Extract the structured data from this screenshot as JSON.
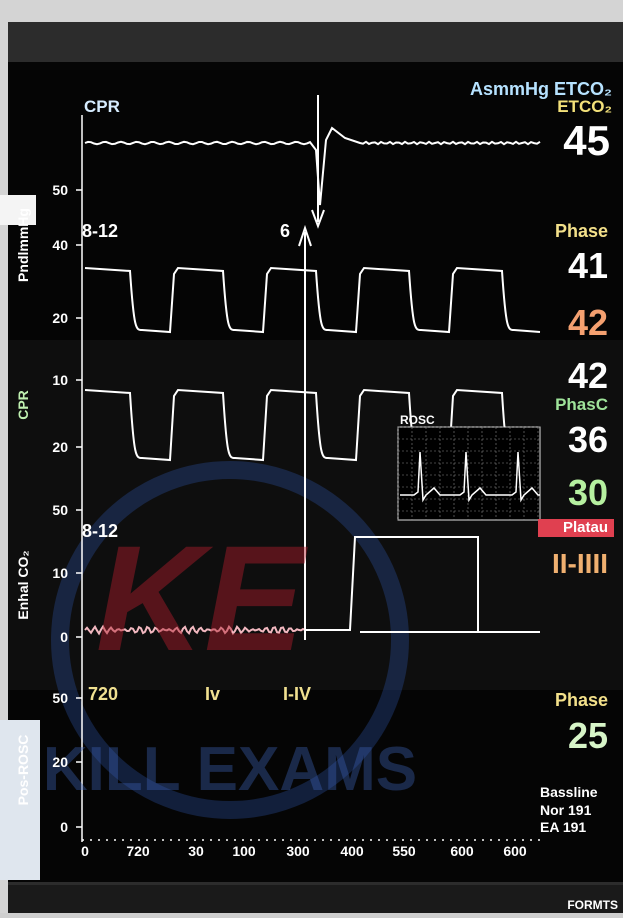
{
  "header": {
    "co2_label": "AsmmHg ETCO₂",
    "etco2_label": "ETCO₂",
    "etco2_value": "45"
  },
  "panels": [
    {
      "title": "CPR",
      "axis_label": "PndlmmHg",
      "ticks": [
        "50",
        "40",
        "20"
      ],
      "range_label": "8-12",
      "marker": "6"
    },
    {
      "axis_label": "CPR",
      "ticks": [
        "10",
        "20"
      ]
    },
    {
      "axis_label": "Enhal CO₂",
      "ticks": [
        "50",
        "10",
        "0"
      ],
      "range_label": "8-12"
    },
    {
      "axis_label": "Pos-ROSC",
      "ticks": [
        "50",
        "20",
        "0"
      ]
    }
  ],
  "inset": {
    "label": "ROSC"
  },
  "events": [
    "720",
    "Iv",
    "I-IV"
  ],
  "x_axis": {
    "ticks": [
      "0",
      "720",
      "30",
      "100",
      "300",
      "400",
      "550",
      "600",
      "600"
    ]
  },
  "readouts": [
    "Phase",
    "41",
    "42",
    "42",
    "PhasC",
    "36",
    "30",
    "Platau",
    "II-IIII",
    "Phase",
    "25",
    "Bassline",
    "Nor 191",
    "EA 191"
  ],
  "watermark": [
    "KE",
    "KILL EXAMS"
  ],
  "footer": "FORMTS"
}
